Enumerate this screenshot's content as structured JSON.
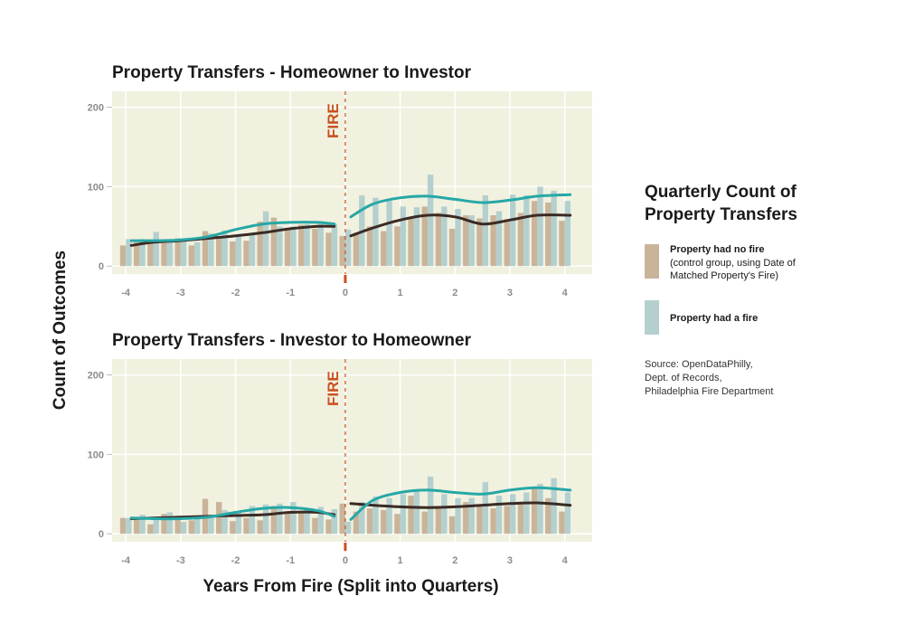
{
  "colors": {
    "panel_bg": "#f1f1e0",
    "grid": "#ffffff",
    "no_fire_bar": "#c9b49a",
    "fire_bar": "#b4d0ce",
    "no_fire_line": "#3b2a24",
    "fire_line": "#26a8a6",
    "fire_marker": "#c8501e",
    "tick_text": "#8c8c8c"
  },
  "axes": {
    "xlabel": "Years From Fire (Split into Quarters)",
    "ylabel": "Count of Outcomes",
    "x_ticks": [
      "-4",
      "-3",
      "-2",
      "-1",
      "0",
      "1",
      "2",
      "3",
      "4"
    ],
    "y_ticks": [
      "0",
      "100",
      "200"
    ]
  },
  "fire_label": "FIRE",
  "legend": {
    "title_line1": "Quarterly Count of",
    "title_line2": "Property Transfers",
    "no_fire_label": "Property had no fire",
    "no_fire_note_line1": "(control group, using Date of",
    "no_fire_note_line2": "Matched Property's Fire)",
    "fire_label": "Property had a fire"
  },
  "source": {
    "line1": "Source: OpenDataPhilly,",
    "line2": "Dept. of Records,",
    "line3": "Philadelphia Fire Department"
  },
  "chart_data": [
    {
      "type": "bar",
      "title": "Property Transfers - Homeowner to Investor",
      "xlabel": "Years From Fire (Split into Quarters)",
      "ylabel": "Count of Outcomes",
      "xlim": [
        -4.25,
        4.5
      ],
      "ylim": [
        -10,
        220
      ],
      "fire_x": 0,
      "x": [
        -4,
        -3.75,
        -3.5,
        -3.25,
        -3,
        -2.75,
        -2.5,
        -2.25,
        -2,
        -1.75,
        -1.5,
        -1.25,
        -1,
        -0.75,
        -0.5,
        -0.25,
        0,
        0.25,
        0.5,
        0.75,
        1,
        1.25,
        1.5,
        1.75,
        2,
        2.25,
        2.5,
        2.75,
        3,
        3.25,
        3.5,
        3.75,
        4
      ],
      "series": [
        {
          "name": "Property had no fire",
          "values": [
            26,
            30,
            29,
            33,
            35,
            26,
            44,
            35,
            31,
            32,
            56,
            61,
            48,
            52,
            47,
            42,
            38,
            42,
            50,
            44,
            50,
            60,
            75,
            67,
            47,
            64,
            60,
            64,
            59,
            67,
            82,
            80,
            57
          ],
          "trend_x": [
            -3.9,
            -3.5,
            -3,
            -2.5,
            -2,
            -1.5,
            -1,
            -0.5,
            -0.2
          ],
          "trend_y": [
            26,
            30,
            32,
            35,
            38,
            42,
            47,
            50,
            50
          ]
        },
        {
          "name": "Property had a fire",
          "values": [
            34,
            34,
            43,
            31,
            32,
            30,
            41,
            45,
            38,
            39,
            69,
            50,
            50,
            53,
            55,
            53,
            46,
            89,
            86,
            82,
            75,
            74,
            115,
            75,
            72,
            64,
            89,
            69,
            90,
            89,
            100,
            95,
            82
          ],
          "trend_x": [
            -3.9,
            -3.5,
            -3,
            -2.5,
            -2,
            -1.5,
            -1,
            -0.5,
            -0.2
          ],
          "trend_y": [
            32,
            32,
            33,
            37,
            46,
            53,
            55,
            55,
            53
          ]
        }
      ],
      "post_trends": [
        {
          "series": "Property had no fire",
          "x": [
            0.1,
            0.5,
            1,
            1.5,
            2,
            2.5,
            3,
            3.5,
            4.1
          ],
          "y": [
            38,
            48,
            58,
            64,
            62,
            53,
            58,
            64,
            64
          ]
        },
        {
          "series": "Property had a fire",
          "x": [
            0.1,
            0.5,
            1,
            1.5,
            2,
            2.5,
            3,
            3.5,
            4.1
          ],
          "y": [
            62,
            78,
            86,
            88,
            84,
            80,
            83,
            88,
            90
          ]
        }
      ]
    },
    {
      "type": "bar",
      "title": "Property Transfers - Investor to Homeowner",
      "xlabel": "Years From Fire (Split into Quarters)",
      "ylabel": "Count of Outcomes",
      "xlim": [
        -4.25,
        4.5
      ],
      "ylim": [
        -10,
        220
      ],
      "fire_x": 0,
      "x": [
        -4,
        -3.75,
        -3.5,
        -3.25,
        -3,
        -2.75,
        -2.5,
        -2.25,
        -2,
        -1.75,
        -1.5,
        -1.25,
        -1,
        -0.75,
        -0.5,
        -0.25,
        0,
        0.25,
        0.5,
        0.75,
        1,
        1.25,
        1.5,
        1.75,
        2,
        2.25,
        2.5,
        2.75,
        3,
        3.25,
        3.5,
        3.75,
        4
      ],
      "series": [
        {
          "name": "Property had no fire",
          "values": [
            20,
            18,
            12,
            25,
            20,
            17,
            44,
            40,
            16,
            20,
            17,
            35,
            28,
            28,
            20,
            18,
            38,
            28,
            32,
            30,
            25,
            48,
            28,
            32,
            22,
            40,
            35,
            32,
            35,
            40,
            58,
            45,
            28
          ],
          "trend_x": [
            -3.9,
            -3.5,
            -3,
            -2.5,
            -2,
            -1.5,
            -1,
            -0.5,
            -0.2
          ],
          "trend_y": [
            19,
            20,
            21,
            22,
            23,
            24,
            27,
            27,
            24
          ]
        },
        {
          "name": "Property had a fire",
          "values": [
            20,
            24,
            18,
            27,
            15,
            20,
            20,
            30,
            28,
            35,
            37,
            38,
            40,
            32,
            34,
            31,
            15,
            40,
            47,
            45,
            50,
            53,
            72,
            50,
            45,
            45,
            65,
            48,
            50,
            52,
            63,
            70,
            52
          ],
          "trend_x": [
            -3.9,
            -3.5,
            -3,
            -2.5,
            -2,
            -1.5,
            -1,
            -0.5,
            -0.2
          ],
          "trend_y": [
            20,
            19,
            19,
            21,
            27,
            32,
            33,
            29,
            22
          ]
        }
      ],
      "post_trends": [
        {
          "series": "Property had no fire",
          "x": [
            0.1,
            0.5,
            1,
            1.5,
            2,
            2.5,
            3,
            3.5,
            4.1
          ],
          "y": [
            38,
            36,
            34,
            33,
            34,
            36,
            38,
            39,
            36
          ]
        },
        {
          "series": "Property had a fire",
          "x": [
            0.1,
            0.5,
            1,
            1.5,
            2,
            2.5,
            3,
            3.5,
            4.1
          ],
          "y": [
            18,
            42,
            52,
            55,
            52,
            50,
            55,
            58,
            55
          ]
        }
      ]
    }
  ]
}
